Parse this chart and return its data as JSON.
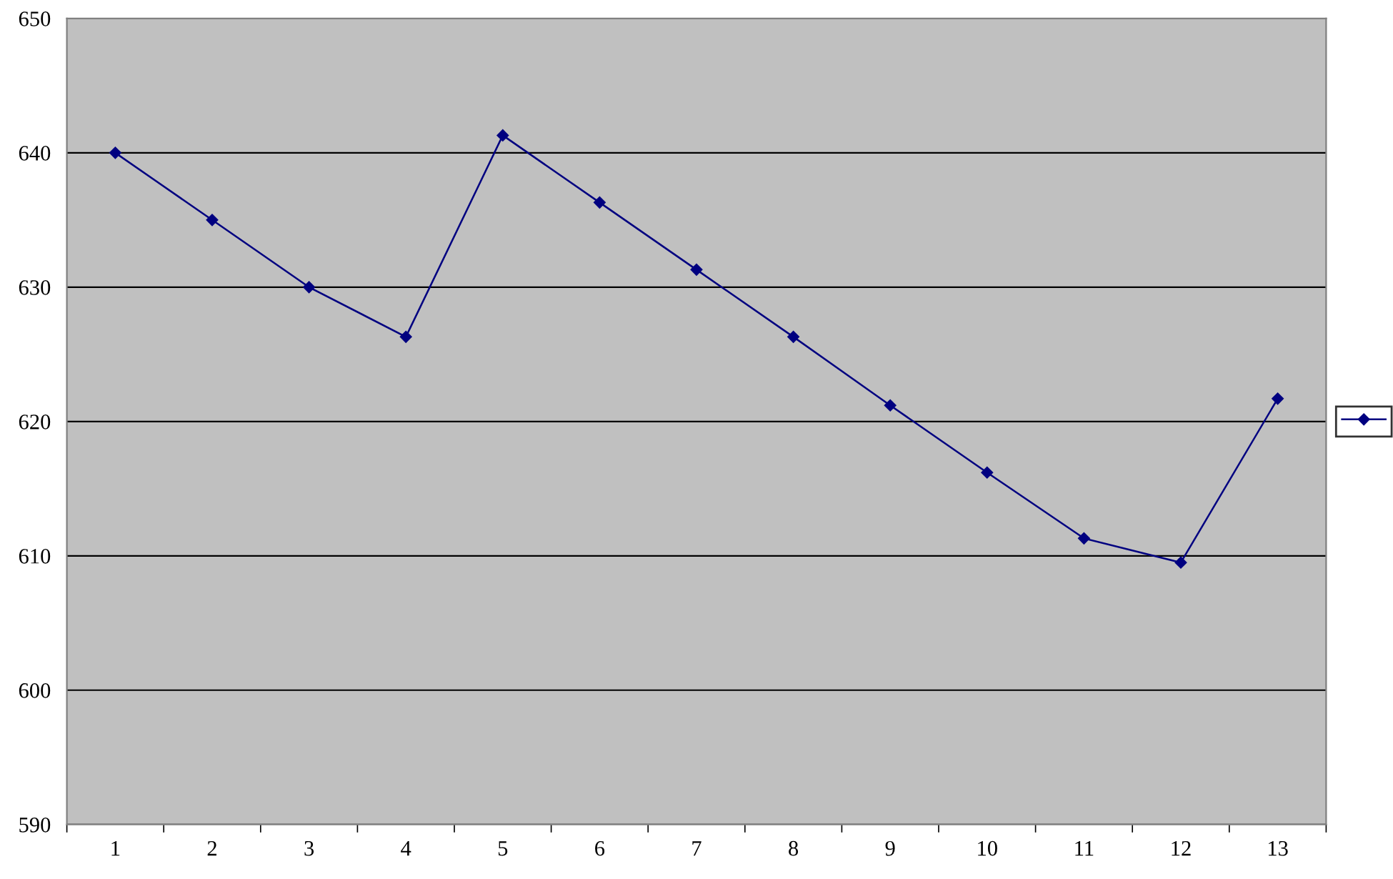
{
  "chart_data": {
    "type": "line",
    "categories": [
      "1",
      "2",
      "3",
      "4",
      "5",
      "6",
      "7",
      "8",
      "9",
      "10",
      "11",
      "12",
      "13"
    ],
    "series": [
      {
        "color": "#000080",
        "values": [
          640,
          635,
          630,
          626.3,
          641.3,
          636.3,
          631.3,
          626.3,
          621.2,
          616.2,
          611.3,
          609.5,
          621.7
        ]
      }
    ],
    "ylim": [
      590,
      650
    ],
    "yticks": [
      590,
      600,
      610,
      620,
      630,
      640,
      650
    ],
    "grid": "y",
    "marker": "diamond",
    "line_style": "solid"
  }
}
